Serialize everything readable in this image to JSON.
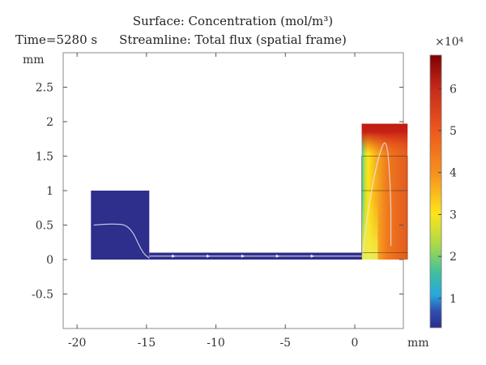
{
  "header": {
    "time": "Time=5280 s",
    "title": "Surface: Concentration (mol/m³)",
    "subtitle": "Streamline: Total flux (spatial frame)"
  },
  "chart_data": {
    "type": "heatmap",
    "title": "Surface: Concentration (mol/m³)",
    "subtitle": "Streamline: Total flux (spatial frame)",
    "time_label": "Time=5280 s",
    "xlabel": "mm",
    "ylabel": "mm",
    "xlim": [
      -21,
      3.5
    ],
    "ylim": [
      -1.0,
      3.0
    ],
    "xticks": [
      -20,
      -15,
      -10,
      -5,
      0
    ],
    "yticks": [
      -0.5,
      0,
      0.5,
      1,
      1.5,
      2,
      2.5
    ],
    "grid": false,
    "colorbar": {
      "multiplier": "×10⁴",
      "range": [
        0.3,
        6.8
      ],
      "ticks": [
        1,
        2,
        3,
        4,
        5,
        6
      ],
      "colormap": "rainbow"
    },
    "regions": [
      {
        "name": "left-reservoir",
        "x": [
          -19,
          -14.8
        ],
        "y": [
          0,
          1.0
        ],
        "concentration": 0.6
      },
      {
        "name": "channel",
        "x": [
          -14.8,
          0.5
        ],
        "y": [
          0,
          0.1
        ],
        "concentration": 0.6
      },
      {
        "name": "right-reservoir",
        "x": [
          0.5,
          3.8
        ],
        "y": [
          0,
          1.97
        ],
        "concentration_range": [
          1.5,
          6.8
        ]
      }
    ],
    "streamlines": [
      {
        "name": "left-flux",
        "points": [
          [
            -18.8,
            0.5
          ],
          [
            -17.5,
            0.52
          ],
          [
            -16.2,
            0.5
          ],
          [
            -15.3,
            0.1
          ],
          [
            -14.8,
            0.02
          ]
        ]
      },
      {
        "name": "channel-flux",
        "points": [
          [
            -14.8,
            0.05
          ],
          [
            -10,
            0.05
          ],
          [
            -5,
            0.05
          ],
          [
            0.5,
            0.05
          ]
        ]
      },
      {
        "name": "right-flux",
        "points": [
          [
            0.6,
            0.1
          ],
          [
            1.0,
            0.8
          ],
          [
            1.7,
            1.5
          ],
          [
            2.3,
            1.8
          ],
          [
            2.6,
            1.0
          ],
          [
            2.6,
            0.2
          ]
        ]
      }
    ]
  }
}
